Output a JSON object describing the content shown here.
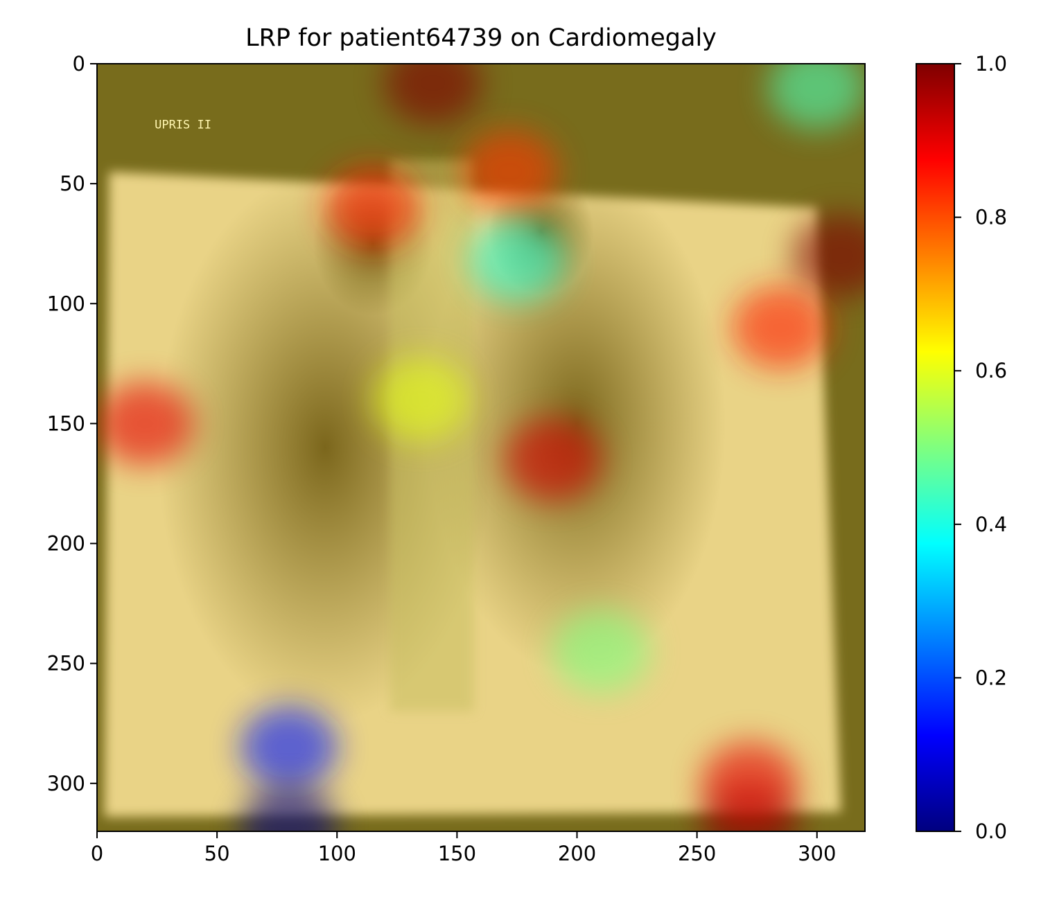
{
  "chart_data": {
    "type": "heatmap",
    "title": "LRP for patient64739 on Cardiomegaly",
    "xlabel": "",
    "ylabel": "",
    "xlim": [
      0,
      320
    ],
    "ylim": [
      320,
      0
    ],
    "x_ticks": [
      0,
      50,
      100,
      150,
      200,
      250,
      300
    ],
    "y_ticks": [
      0,
      50,
      100,
      150,
      200,
      250,
      300
    ],
    "grid": false,
    "background": "chest x-ray image overlaid with LRP relevance heatmap",
    "image_marker_text": "UPRIS II",
    "colorbar": {
      "colormap": "jet",
      "range": [
        0.0,
        1.0
      ],
      "ticks": [
        "0.0",
        "0.2",
        "0.4",
        "0.6",
        "0.8",
        "1.0"
      ]
    },
    "relevance_hotspots": [
      {
        "x": 140,
        "y": 8,
        "relevance": 1.0
      },
      {
        "x": 115,
        "y": 60,
        "relevance": 0.85
      },
      {
        "x": 172,
        "y": 45,
        "relevance": 0.82
      },
      {
        "x": 310,
        "y": 80,
        "relevance": 1.0
      },
      {
        "x": 300,
        "y": 10,
        "relevance": 0.45
      },
      {
        "x": 175,
        "y": 82,
        "relevance": 0.42
      },
      {
        "x": 135,
        "y": 140,
        "relevance": 0.6
      },
      {
        "x": 80,
        "y": 285,
        "relevance": 0.15
      },
      {
        "x": 80,
        "y": 318,
        "relevance": 0.0
      },
      {
        "x": 272,
        "y": 318,
        "relevance": 1.0
      },
      {
        "x": 272,
        "y": 300,
        "relevance": 0.9
      },
      {
        "x": 210,
        "y": 245,
        "relevance": 0.5
      },
      {
        "x": 20,
        "y": 150,
        "relevance": 0.9
      },
      {
        "x": 285,
        "y": 110,
        "relevance": 0.85
      },
      {
        "x": 190,
        "y": 165,
        "relevance": 0.92
      }
    ]
  }
}
